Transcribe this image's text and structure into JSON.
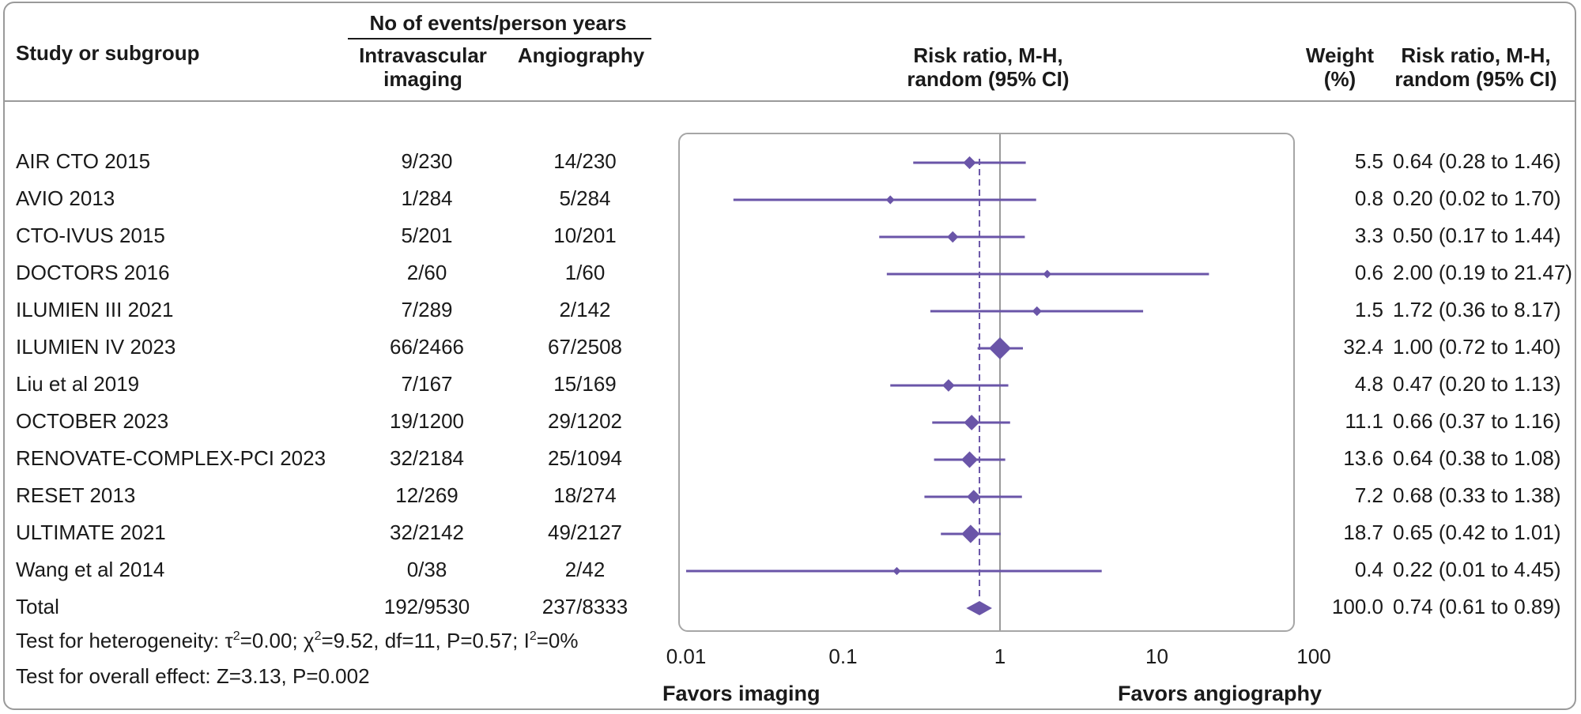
{
  "header": {
    "col_study": "Study or subgroup",
    "events_group": "No of events/person years",
    "col_imaging_line1": "Intravascular",
    "col_imaging_line2": "imaging",
    "col_angio": "Angiography",
    "col_plot_line1": "Risk ratio, M-H,",
    "col_plot_line2": "random (95% CI)",
    "col_weight_line1": "Weight",
    "col_weight_line2": "(%)",
    "col_rr_line1": "Risk ratio, M-H,",
    "col_rr_line2": "random (95% CI)"
  },
  "rows": [
    {
      "study": "AIR CTO 2015",
      "imaging": "9/230",
      "angio": "14/230",
      "weight": "5.5",
      "rr_text": "0.64 (0.28 to 1.46)"
    },
    {
      "study": "AVIO  2013",
      "imaging": "1/284",
      "angio": "5/284",
      "weight": "0.8",
      "rr_text": "0.20 (0.02 to 1.70)"
    },
    {
      "study": "CTO-IVUS 2015",
      "imaging": "5/201",
      "angio": "10/201",
      "weight": "3.3",
      "rr_text": "0.50 (0.17 to 1.44)"
    },
    {
      "study": "DOCTORS 2016",
      "imaging": "2/60",
      "angio": "1/60",
      "weight": "0.6",
      "rr_text": "2.00 (0.19 to 21.47)"
    },
    {
      "study": "ILUMIEN III 2021",
      "imaging": "7/289",
      "angio": "2/142",
      "weight": "1.5",
      "rr_text": "1.72 (0.36 to 8.17)"
    },
    {
      "study": "ILUMIEN IV 2023",
      "imaging": "66/2466",
      "angio": "67/2508",
      "weight": "32.4",
      "rr_text": "1.00 (0.72 to 1.40)"
    },
    {
      "study": "Liu et al 2019",
      "imaging": "7/167",
      "angio": "15/169",
      "weight": "4.8",
      "rr_text": "0.47 (0.20 to 1.13)"
    },
    {
      "study": "OCTOBER 2023",
      "imaging": "19/1200",
      "angio": "29/1202",
      "weight": "11.1",
      "rr_text": "0.66 (0.37 to 1.16)"
    },
    {
      "study": "RENOVATE-COMPLEX-PCI 2023",
      "imaging": "32/2184",
      "angio": "25/1094",
      "weight": "13.6",
      "rr_text": "0.64 (0.38 to 1.08)"
    },
    {
      "study": "RESET 2013",
      "imaging": "12/269",
      "angio": "18/274",
      "weight": "7.2",
      "rr_text": "0.68 (0.33 to 1.38)"
    },
    {
      "study": "ULTIMATE 2021",
      "imaging": "32/2142",
      "angio": "49/2127",
      "weight": "18.7",
      "rr_text": "0.65 (0.42 to 1.01)"
    },
    {
      "study": "Wang et al 2014",
      "imaging": "0/38",
      "angio": "2/42",
      "weight": "0.4",
      "rr_text": "0.22 (0.01 to 4.45)"
    },
    {
      "study": "Total",
      "imaging": "192/9530",
      "angio": "237/8333",
      "weight": "100.0",
      "rr_text": "0.74 (0.61 to 0.89)"
    }
  ],
  "footer": {
    "heterogeneity_prefix": "Test for heterogeneity: τ",
    "heterogeneity_mid1": "=0.00; χ",
    "heterogeneity_mid2": "=9.52, df=11, P=0.57; I",
    "heterogeneity_suffix": "=0%",
    "sup2": "2",
    "overall_effect": "Test for overall effect: Z=3.13, P=0.002"
  },
  "axis": {
    "ticks": [
      "0.01",
      "0.1",
      "1",
      "10",
      "100"
    ],
    "favors_left": "Favors imaging",
    "favors_right": "Favors angiography"
  },
  "colors": {
    "accent": "#6a55a8"
  },
  "chart_data": {
    "type": "forest",
    "scale": "log",
    "xlim": [
      0.01,
      100
    ],
    "reference_line": 1,
    "pooled_line": 0.74,
    "x_ticks": [
      0.01,
      0.1,
      1,
      10,
      100
    ],
    "studies": [
      {
        "name": "AIR CTO 2015",
        "rr": 0.64,
        "lo": 0.28,
        "hi": 1.46,
        "weight": 5.5
      },
      {
        "name": "AVIO  2013",
        "rr": 0.2,
        "lo": 0.02,
        "hi": 1.7,
        "weight": 0.8
      },
      {
        "name": "CTO-IVUS 2015",
        "rr": 0.5,
        "lo": 0.17,
        "hi": 1.44,
        "weight": 3.3
      },
      {
        "name": "DOCTORS 2016",
        "rr": 2.0,
        "lo": 0.19,
        "hi": 21.47,
        "weight": 0.6
      },
      {
        "name": "ILUMIEN III 2021",
        "rr": 1.72,
        "lo": 0.36,
        "hi": 8.17,
        "weight": 1.5
      },
      {
        "name": "ILUMIEN IV 2023",
        "rr": 1.0,
        "lo": 0.72,
        "hi": 1.4,
        "weight": 32.4
      },
      {
        "name": "Liu et al 2019",
        "rr": 0.47,
        "lo": 0.2,
        "hi": 1.13,
        "weight": 4.8
      },
      {
        "name": "OCTOBER 2023",
        "rr": 0.66,
        "lo": 0.37,
        "hi": 1.16,
        "weight": 11.1
      },
      {
        "name": "RENOVATE-COMPLEX-PCI 2023",
        "rr": 0.64,
        "lo": 0.38,
        "hi": 1.08,
        "weight": 13.6
      },
      {
        "name": "RESET 2013",
        "rr": 0.68,
        "lo": 0.33,
        "hi": 1.38,
        "weight": 7.2
      },
      {
        "name": "ULTIMATE 2021",
        "rr": 0.65,
        "lo": 0.42,
        "hi": 1.01,
        "weight": 18.7
      },
      {
        "name": "Wang et al 2014",
        "rr": 0.22,
        "lo": 0.01,
        "hi": 4.45,
        "weight": 0.4
      }
    ],
    "total": {
      "name": "Total",
      "rr": 0.74,
      "lo": 0.61,
      "hi": 0.89,
      "weight": 100.0
    }
  }
}
